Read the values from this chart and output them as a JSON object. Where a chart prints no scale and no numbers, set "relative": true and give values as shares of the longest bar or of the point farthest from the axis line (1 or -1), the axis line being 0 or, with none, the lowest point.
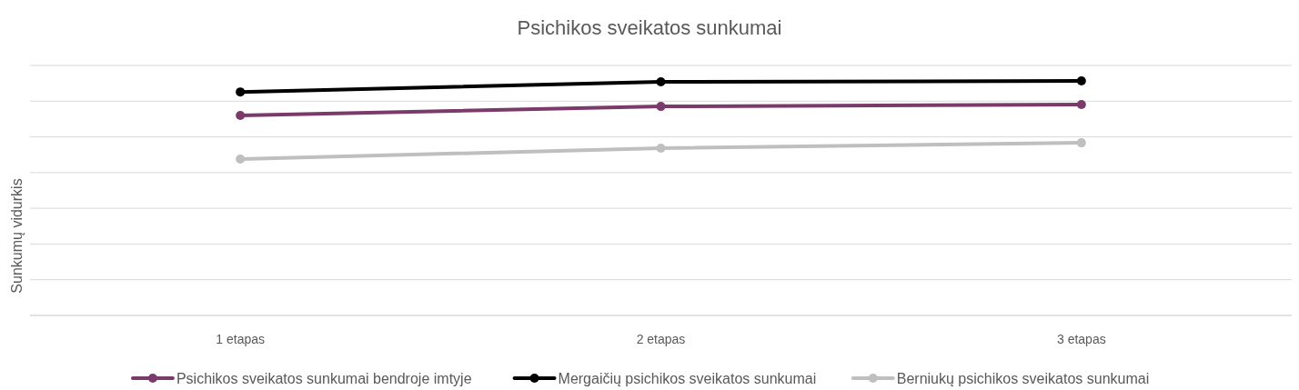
{
  "chart_data": {
    "type": "line",
    "title": "Psichikos sveikatos sunkumai",
    "ylabel": "Sunkumų vidurkis",
    "relative": true,
    "categories": [
      "1 etapas",
      "2 etapas",
      "3 etapas"
    ],
    "series": [
      {
        "name": "Psichikos sveikatos sunkumai bendroje imtyje",
        "color": "#7b3b6a",
        "values": [
          0.853,
          0.891,
          0.899
        ]
      },
      {
        "name": "Mergaičių psichikos sveikatos sunkumai",
        "color": "#000000",
        "values": [
          0.953,
          0.996,
          1
        ]
      },
      {
        "name": "Berniukų psichikos sveikatos sunkumai",
        "color": "#bfbfbf",
        "values": [
          0.667,
          0.713,
          0.736
        ]
      }
    ],
    "grid": "y",
    "legend": "bottom",
    "marker": "circle",
    "line_style": "solid"
  }
}
